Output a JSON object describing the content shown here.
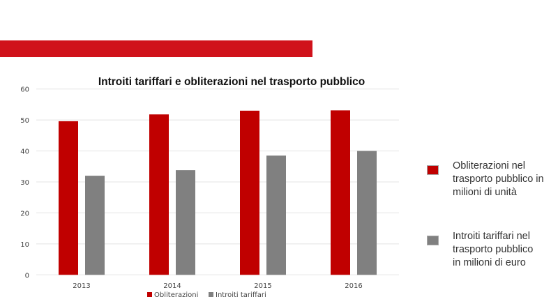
{
  "colors": {
    "band": "#d0121b",
    "obliterazioni": "#c00000",
    "introiti": "#808080",
    "grid": "#e3e3e3"
  },
  "chart_data": {
    "type": "bar",
    "title": "Introiti tariffari e obliterazioni  nel trasporto pubblico",
    "categories": [
      "2013",
      "2014",
      "2015",
      "2016"
    ],
    "series": [
      {
        "name": "Obliterazioni",
        "values": [
          49.6,
          51.8,
          53.0,
          53.1
        ]
      },
      {
        "name": "Introiti tariffari",
        "values": [
          32.0,
          33.8,
          38.5,
          40.0
        ]
      }
    ],
    "ylim": [
      0,
      60
    ],
    "yticks": [
      0,
      10,
      20,
      30,
      40,
      50,
      60
    ],
    "grid": true,
    "legend": "bottom"
  },
  "side_legend": [
    {
      "label_lines": [
        "Obliterazioni nel",
        "trasporto pubblico in",
        "milioni di unità"
      ]
    },
    {
      "label_lines": [
        "Introiti tariffari nel",
        "trasporto pubblico",
        "in milioni di euro"
      ]
    }
  ]
}
